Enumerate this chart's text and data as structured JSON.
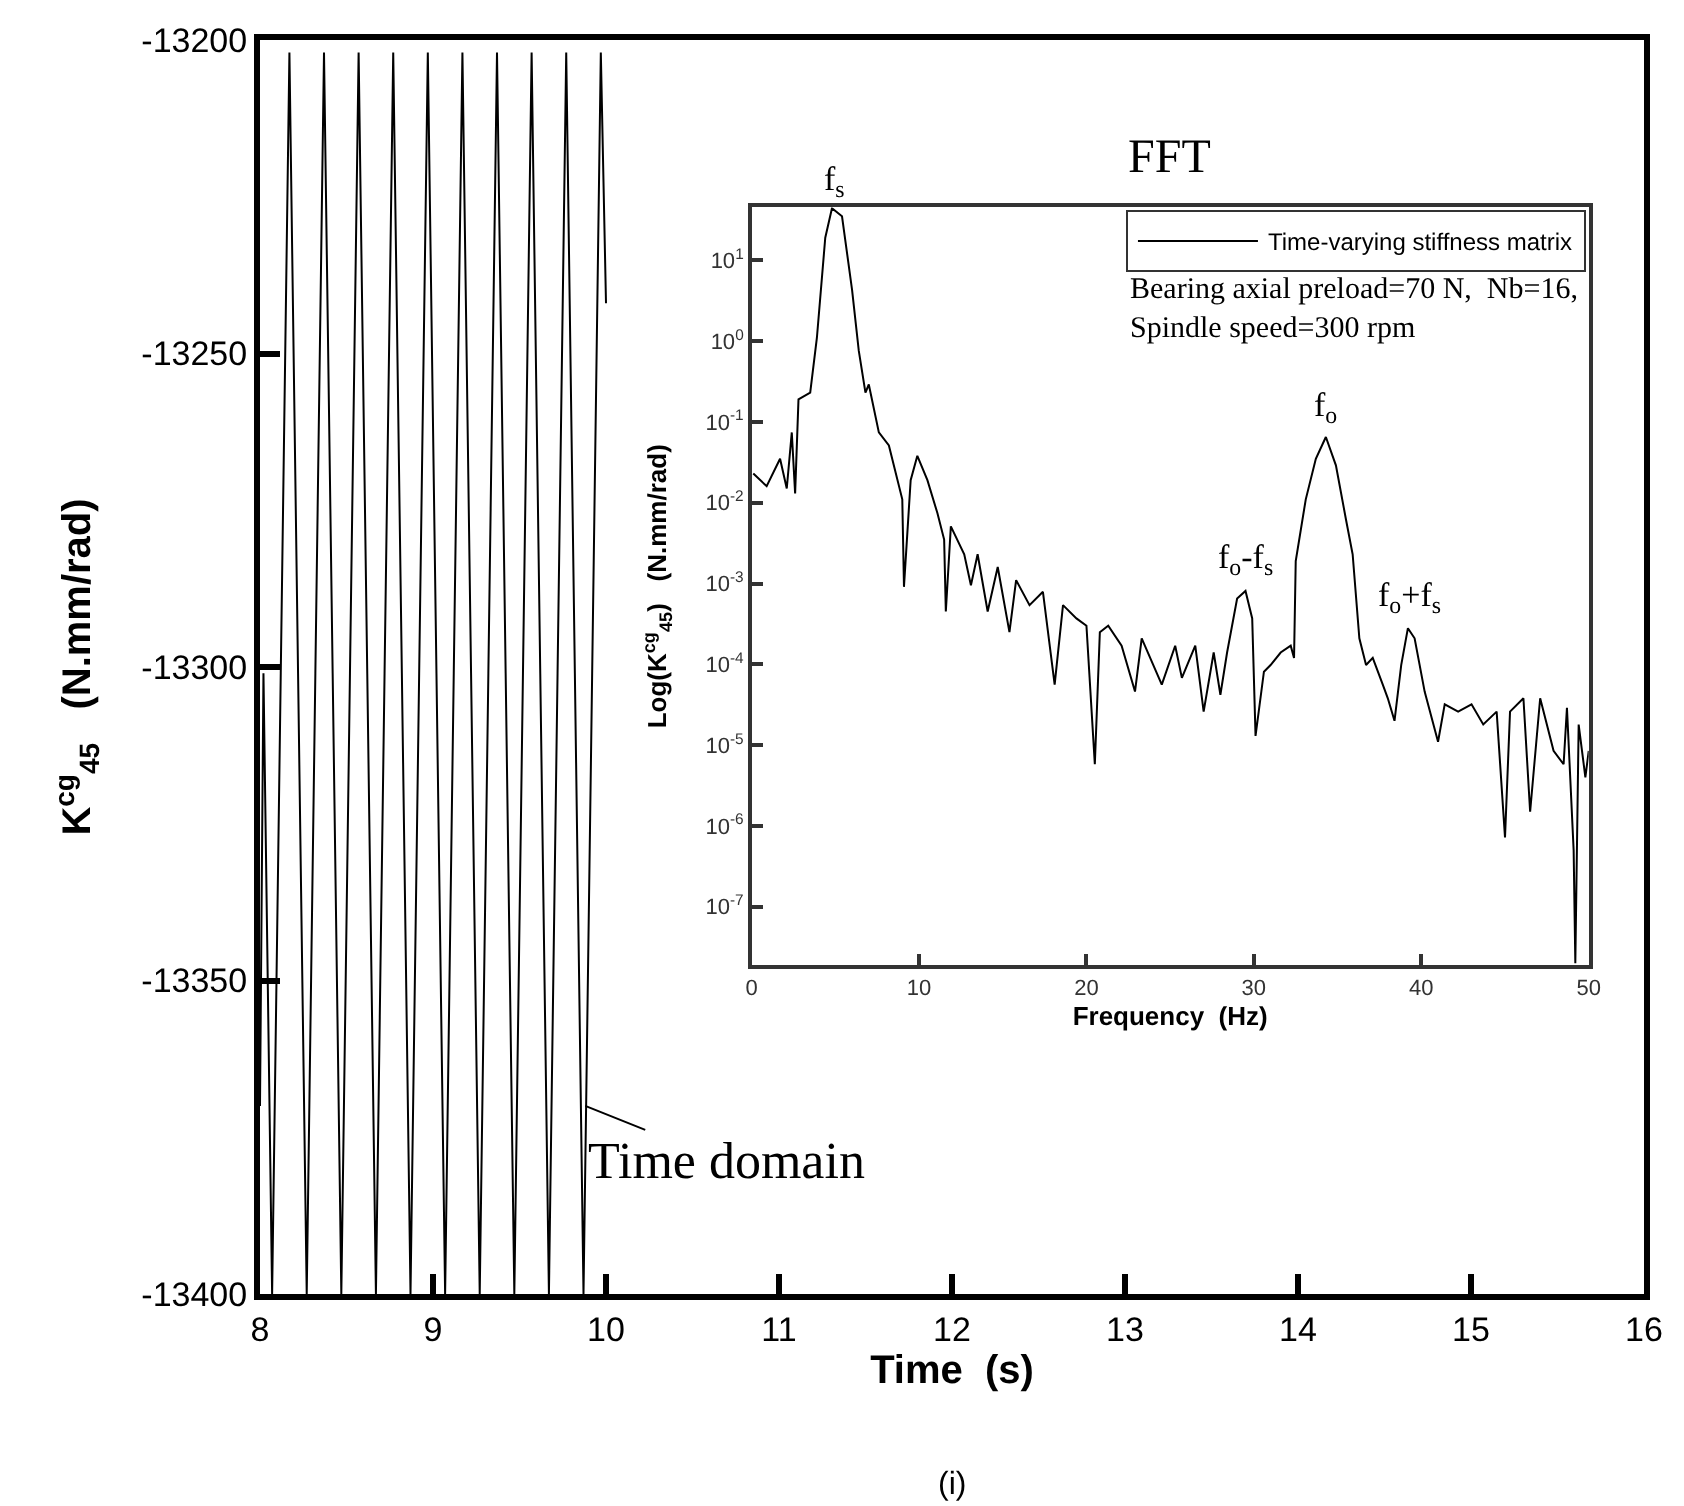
{
  "chart_data": [
    {
      "type": "line",
      "xlabel": "Time  (s)",
      "ylabel": "K$^{cg}$$_{45}$   (N.mm/rad)",
      "xlim": [
        8,
        16
      ],
      "xticks": [
        8,
        9,
        10,
        11,
        12,
        13,
        14,
        15,
        16
      ],
      "ylim": [
        -13400,
        -13200
      ],
      "yticks": [
        -13400,
        -13350,
        -13300,
        -13250,
        -13200
      ],
      "legend": false,
      "marker": "none",
      "line_style": "solid",
      "series": [
        {
          "color": "#000000",
          "x": [
            8.0,
            8.02,
            8.07,
            8.12,
            8.17,
            8.22,
            8.27,
            8.32,
            8.37,
            8.42,
            8.47,
            8.52,
            8.57,
            8.62,
            8.67,
            8.72,
            8.77,
            8.82,
            8.87,
            8.92,
            8.97,
            9.02,
            9.07,
            9.12,
            9.17,
            9.22,
            9.27,
            9.32,
            9.37,
            9.42,
            9.47,
            9.52,
            9.57,
            9.62,
            9.67,
            9.72,
            9.77,
            9.82,
            9.87,
            9.92,
            9.97,
            10.0
          ],
          "values": [
            -13370,
            -13301,
            -13400,
            -13301,
            -13202,
            -13301,
            -13400,
            -13301,
            -13202,
            -13301,
            -13400,
            -13301,
            -13202,
            -13301,
            -13400,
            -13301,
            -13202,
            -13301,
            -13400,
            -13301,
            -13202,
            -13301,
            -13400,
            -13301,
            -13202,
            -13301,
            -13400,
            -13301,
            -13202,
            -13301,
            -13400,
            -13301,
            -13202,
            -13301,
            -13400,
            -13301,
            -13202,
            -13301,
            -13400,
            -13301,
            -13202,
            -13242
          ]
        }
      ],
      "annotations": [
        {
          "text": "Time domain",
          "x": 9.88,
          "y": -13370
        },
        "(i)"
      ]
    },
    {
      "type": "line",
      "title": "FFT",
      "xlabel": "Frequency  (Hz)",
      "ylabel": "Log(K$^{cg}$$_{45}$)   (N.mm/rad)",
      "log": "y",
      "xlim": [
        0,
        50
      ],
      "xticks": [
        0,
        10,
        20,
        30,
        40,
        50
      ],
      "ylim": [
        1.9e-08,
        45
      ],
      "yticks": [
        {
          "value": 1e-07,
          "label": "10$^{-7}$"
        },
        {
          "value": 1e-06,
          "label": "10$^{-6}$"
        },
        {
          "value": 1e-05,
          "label": "10$^{-5}$"
        },
        {
          "value": 0.0001,
          "label": "10$^{-4}$"
        },
        {
          "value": 0.001,
          "label": "10$^{-3}$"
        },
        {
          "value": 0.01,
          "label": "10$^{-2}$"
        },
        {
          "value": 0.1,
          "label": "10$^{-1}$"
        },
        {
          "value": 1,
          "label": "10$^{0}$"
        },
        {
          "value": 10,
          "label": "10$^{1}$"
        }
      ],
      "legend": "top right",
      "marker": "none",
      "line_style": "solid",
      "series": [
        {
          "name": "Time-varying stiffness matrix",
          "color": "#000000",
          "x": [
            0.1,
            0.9,
            1.7,
            2.1,
            2.4,
            2.6,
            2.8,
            3.5,
            3.9,
            4.4,
            4.8,
            5.4,
            6.0,
            6.4,
            6.8,
            7.0,
            7.6,
            8.2,
            9.0,
            9.1,
            9.5,
            9.9,
            10.5,
            11.1,
            11.5,
            11.6,
            11.9,
            12.7,
            13.1,
            13.5,
            14.1,
            14.7,
            15.4,
            15.8,
            16.6,
            17.4,
            18.1,
            18.6,
            19.4,
            20.0,
            20.5,
            20.8,
            21.3,
            22.1,
            22.9,
            23.3,
            24.5,
            25.3,
            25.7,
            26.5,
            27.0,
            27.6,
            28.0,
            28.4,
            29.0,
            29.5,
            29.9,
            30.1,
            30.6,
            31.0,
            31.6,
            32.2,
            32.4,
            32.5,
            33.1,
            33.7,
            34.3,
            34.9,
            35.5,
            35.9,
            36.3,
            36.7,
            37.1,
            37.7,
            38.0,
            38.4,
            38.8,
            39.2,
            39.6,
            40.2,
            41.0,
            41.4,
            42.2,
            43.0,
            43.7,
            44.5,
            45.0,
            45.3,
            46.1,
            46.5,
            47.1,
            47.9,
            48.5,
            48.7,
            49.1,
            49.2,
            49.4,
            49.8,
            50.0
          ],
          "values": [
            0.023,
            0.016,
            0.035,
            0.015,
            0.074,
            0.013,
            0.19,
            0.23,
            1.1,
            19,
            44,
            35,
            4.3,
            0.76,
            0.23,
            0.29,
            0.074,
            0.051,
            0.011,
            0.00091,
            0.019,
            0.038,
            0.019,
            0.0074,
            0.0035,
            0.00045,
            0.0051,
            0.0023,
            0.00095,
            0.0023,
            0.00045,
            0.0016,
            0.00025,
            0.0011,
            0.00054,
            0.00079,
            5.6e-05,
            0.00054,
            0.00037,
            0.0003,
            5.8e-06,
            0.00025,
            0.0003,
            0.00017,
            4.6e-05,
            0.00021,
            5.6e-05,
            0.00017,
            6.8e-05,
            0.00017,
            2.6e-05,
            0.00014,
            4.2e-05,
            0.00014,
            0.00065,
            0.00081,
            0.00037,
            1.3e-05,
            8.1e-05,
            9.8e-05,
            0.00014,
            0.00017,
            0.00012,
            0.0019,
            0.011,
            0.035,
            0.065,
            0.029,
            0.0062,
            0.0023,
            0.00021,
            9.8e-05,
            0.00012,
            5.6e-05,
            3.8e-05,
            2e-05,
            9.8e-05,
            0.00028,
            0.00021,
            4.6e-05,
            1.1e-05,
            3.2e-05,
            2.6e-05,
            3.2e-05,
            1.8e-05,
            2.6e-05,
            7.2e-07,
            2.6e-05,
            3.8e-05,
            1.5e-06,
            3.8e-05,
            8.5e-06,
            5.8e-06,
            2.9e-05,
            5e-07,
            2e-08,
            1.8e-05,
            4e-06,
            8.5e-06
          ]
        }
      ],
      "annotations": [
        "Bearing axial preload=70 N,  Nb=16,\nSpindle speed=300 rpm",
        {
          "text": "f$_{s}$",
          "x": 5.0,
          "y": 40
        },
        {
          "text": "f$_{o}$-f$_{s}$",
          "x": 29.5,
          "y": 0.00081
        },
        {
          "text": "f$_{o}$",
          "x": 34.3,
          "y": 0.065
        },
        {
          "text": "f$_{o}$+f$_{s}$",
          "x": 39.3,
          "y": 0.00028
        }
      ]
    }
  ]
}
